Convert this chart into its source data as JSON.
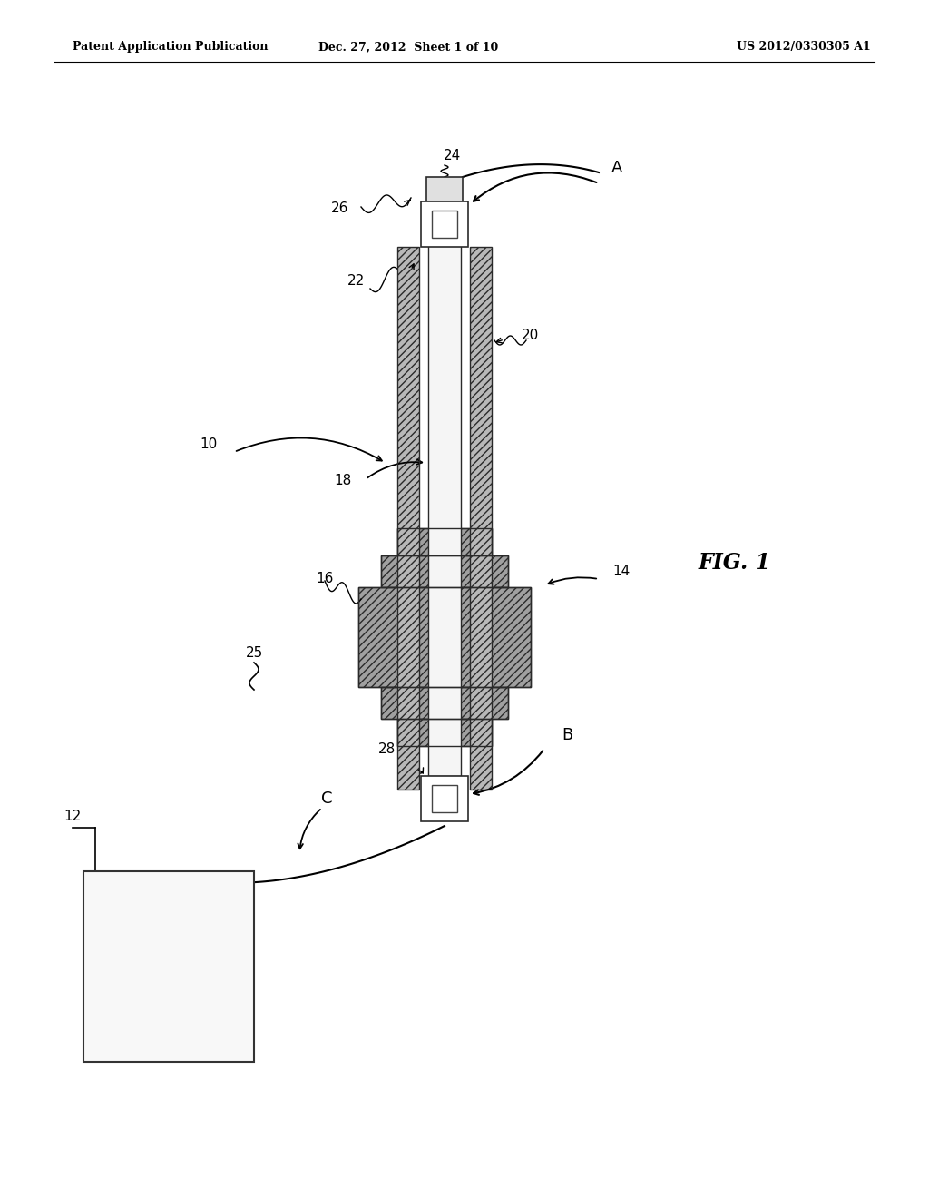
{
  "background_color": "#ffffff",
  "header_left": "Patent Application Publication",
  "header_mid": "Dec. 27, 2012  Sheet 1 of 10",
  "header_right": "US 2012/0330305 A1",
  "fig_label": "FIG. 1",
  "shaft_gray": "#b8b8b8",
  "trocar_gray": "#a0a0a0",
  "inner_white": "#f5f5f5",
  "border_dark": "#2a2a2a",
  "hatch_color": "#555555"
}
